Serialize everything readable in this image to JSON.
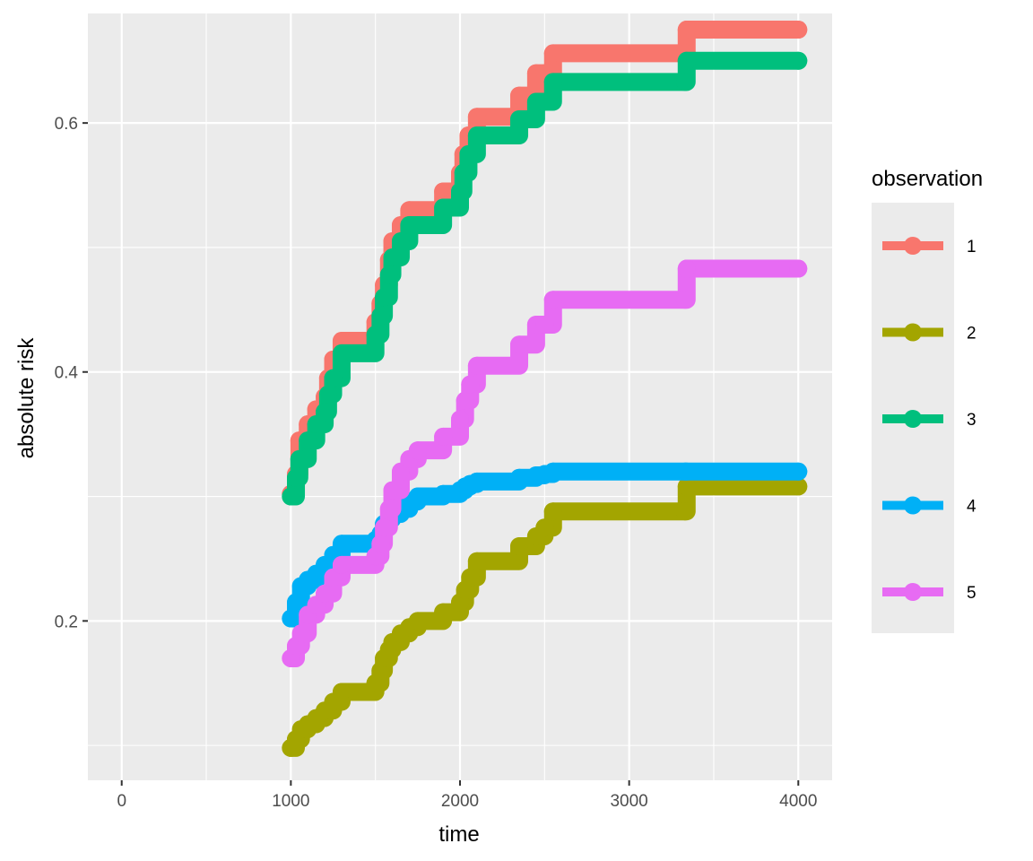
{
  "chart_data": {
    "type": "line",
    "xlabel": "time",
    "ylabel": "absolute risk",
    "xlim": [
      -200,
      4200
    ],
    "ylim": [
      0.072,
      0.688
    ],
    "x_ticks": [
      0,
      1000,
      2000,
      3000,
      4000
    ],
    "x_tick_labels": [
      "0",
      "1000",
      "2000",
      "3000",
      "4000"
    ],
    "y_ticks": [
      0.2,
      0.4,
      0.6
    ],
    "y_tick_labels": [
      "0.2",
      "0.4",
      "0.6"
    ],
    "grid": true,
    "legend": {
      "title": "observation",
      "position": "right"
    },
    "colors": {
      "panel": "#EBEBEB",
      "grid": "#FFFFFF",
      "series_1": "#F8766D",
      "series_2": "#A3A500",
      "series_3": "#00BF7D",
      "series_4": "#00B0F6",
      "series_5": "#E76BF3"
    },
    "series": [
      {
        "name": "1",
        "color": "#F8766D",
        "x": [
          1000,
          1030,
          1050,
          1100,
          1150,
          1200,
          1220,
          1250,
          1300,
          1500,
          1530,
          1550,
          1580,
          1600,
          1650,
          1700,
          1900,
          2000,
          2020,
          2050,
          2100,
          2350,
          2450,
          2500,
          2550,
          3330,
          3340,
          4000
        ],
        "y": [
          0.302,
          0.318,
          0.345,
          0.358,
          0.37,
          0.38,
          0.395,
          0.41,
          0.425,
          0.44,
          0.455,
          0.47,
          0.49,
          0.505,
          0.518,
          0.53,
          0.545,
          0.56,
          0.575,
          0.59,
          0.605,
          0.622,
          0.64,
          0.64,
          0.656,
          0.656,
          0.675,
          0.675
        ]
      },
      {
        "name": "2",
        "color": "#A3A500",
        "x": [
          1000,
          1030,
          1060,
          1100,
          1150,
          1200,
          1250,
          1300,
          1500,
          1530,
          1550,
          1580,
          1600,
          1650,
          1700,
          1750,
          1900,
          2000,
          2030,
          2060,
          2100,
          2350,
          2450,
          2500,
          2550,
          3330,
          3340,
          4000
        ],
        "y": [
          0.098,
          0.105,
          0.113,
          0.117,
          0.122,
          0.128,
          0.135,
          0.143,
          0.15,
          0.16,
          0.17,
          0.177,
          0.183,
          0.19,
          0.195,
          0.2,
          0.207,
          0.215,
          0.225,
          0.235,
          0.248,
          0.26,
          0.268,
          0.275,
          0.288,
          0.288,
          0.308,
          0.308
        ]
      },
      {
        "name": "3",
        "color": "#00BF7D",
        "x": [
          1000,
          1030,
          1050,
          1100,
          1150,
          1200,
          1220,
          1250,
          1300,
          1500,
          1530,
          1550,
          1580,
          1600,
          1650,
          1700,
          1900,
          2000,
          2020,
          2050,
          2100,
          2350,
          2450,
          2500,
          2550,
          3330,
          3340,
          4000
        ],
        "y": [
          0.3,
          0.315,
          0.33,
          0.345,
          0.358,
          0.368,
          0.382,
          0.395,
          0.415,
          0.43,
          0.445,
          0.46,
          0.478,
          0.492,
          0.505,
          0.518,
          0.532,
          0.545,
          0.56,
          0.575,
          0.59,
          0.603,
          0.617,
          0.617,
          0.633,
          0.633,
          0.65,
          0.65
        ]
      },
      {
        "name": "4",
        "color": "#00B0F6",
        "x": [
          1000,
          1030,
          1060,
          1100,
          1150,
          1200,
          1250,
          1300,
          1500,
          1530,
          1550,
          1580,
          1600,
          1650,
          1700,
          1750,
          1900,
          2000,
          2030,
          2060,
          2100,
          2350,
          2450,
          2500,
          2550,
          3330,
          3340,
          4000
        ],
        "y": [
          0.202,
          0.215,
          0.228,
          0.233,
          0.238,
          0.245,
          0.253,
          0.262,
          0.265,
          0.27,
          0.278,
          0.282,
          0.286,
          0.29,
          0.296,
          0.3,
          0.302,
          0.305,
          0.308,
          0.31,
          0.312,
          0.315,
          0.317,
          0.318,
          0.32,
          0.32,
          0.32,
          0.32
        ]
      },
      {
        "name": "5",
        "color": "#E76BF3",
        "x": [
          1000,
          1030,
          1060,
          1100,
          1150,
          1200,
          1250,
          1300,
          1500,
          1530,
          1550,
          1580,
          1600,
          1650,
          1700,
          1750,
          1900,
          2000,
          2030,
          2060,
          2100,
          2350,
          2450,
          2500,
          2550,
          3330,
          3340,
          4000
        ],
        "y": [
          0.17,
          0.18,
          0.19,
          0.205,
          0.213,
          0.222,
          0.235,
          0.245,
          0.252,
          0.262,
          0.275,
          0.29,
          0.305,
          0.32,
          0.33,
          0.337,
          0.348,
          0.362,
          0.377,
          0.39,
          0.405,
          0.422,
          0.438,
          0.438,
          0.458,
          0.458,
          0.483,
          0.483
        ]
      }
    ]
  }
}
